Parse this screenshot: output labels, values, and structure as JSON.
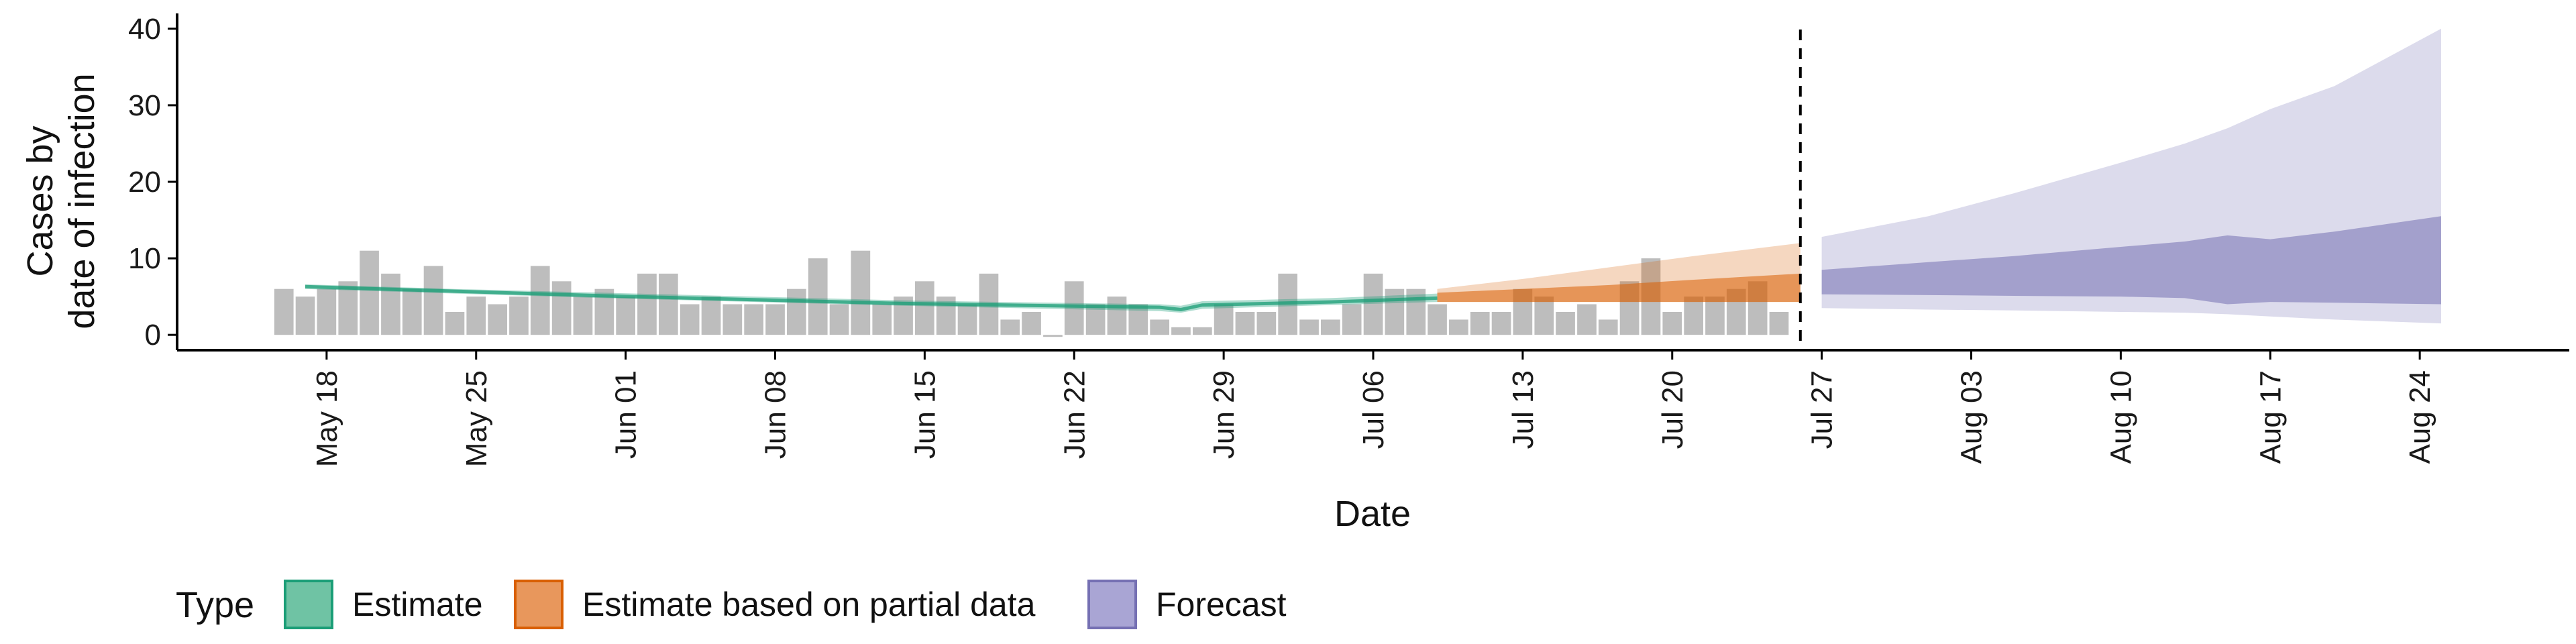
{
  "chart_data": {
    "type": "area",
    "xlabel": "Date",
    "ylabel_lines": [
      "Cases by",
      "date of infection"
    ],
    "yticks": [
      0,
      10,
      20,
      30,
      40
    ],
    "ylim": [
      -2,
      42
    ],
    "xlim": [
      "2020-05-11",
      "2020-08-31"
    ],
    "xticks": [
      "2020-05-18",
      "2020-05-25",
      "2020-06-01",
      "2020-06-08",
      "2020-06-15",
      "2020-06-22",
      "2020-06-29",
      "2020-07-06",
      "2020-07-13",
      "2020-07-20",
      "2020-07-27",
      "2020-08-03",
      "2020-08-10",
      "2020-08-17",
      "2020-08-24"
    ],
    "xtick_labels": [
      "May 18",
      "May 25",
      "Jun 01",
      "Jun 08",
      "Jun 15",
      "Jun 22",
      "Jun 29",
      "Jul 06",
      "Jul 13",
      "Jul 20",
      "Jul 27",
      "Aug 03",
      "Aug 10",
      "Aug 17",
      "Aug 24"
    ],
    "forecast_start": "2020-07-26",
    "observed_cases": {
      "start_date": "2020-05-16",
      "values": [
        6,
        5,
        6,
        7,
        11,
        8,
        6,
        9,
        3,
        5,
        4,
        5,
        9,
        7,
        5,
        6,
        5,
        8,
        8,
        4,
        5,
        4,
        4,
        4,
        6,
        10,
        4,
        11,
        4,
        5,
        7,
        5,
        4,
        8,
        2,
        3,
        0,
        7,
        4,
        5,
        4,
        2,
        1,
        1,
        4,
        3,
        3,
        8,
        2,
        2,
        4,
        8,
        6,
        6,
        4,
        2,
        3,
        3,
        6,
        5,
        3,
        4,
        2,
        7,
        10,
        3,
        5,
        5,
        6,
        7,
        3
      ]
    },
    "series": [
      {
        "name": "Estimate",
        "color": "#1b9e77",
        "x": [
          "2020-05-17",
          "2020-05-24",
          "2020-05-31",
          "2020-06-07",
          "2020-06-14",
          "2020-06-21",
          "2020-06-26",
          "2020-06-27",
          "2020-06-28",
          "2020-07-04",
          "2020-07-09"
        ],
        "median": [
          6.3,
          5.7,
          5.1,
          4.6,
          4.1,
          3.8,
          3.6,
          3.3,
          3.9,
          4.3,
          4.8
        ],
        "lower": [
          6.0,
          5.4,
          4.8,
          4.3,
          3.8,
          3.4,
          3.1,
          2.9,
          3.4,
          3.9,
          4.3
        ],
        "upper": [
          6.6,
          6.0,
          5.5,
          5.0,
          4.5,
          4.2,
          4.0,
          3.8,
          4.4,
          4.8,
          5.4
        ]
      },
      {
        "name": "Estimate based on partial data",
        "color": "#d95f02",
        "x": [
          "2020-07-09",
          "2020-07-13",
          "2020-07-17",
          "2020-07-21",
          "2020-07-26"
        ],
        "lower": [
          4.3,
          4.3,
          4.3,
          4.3,
          4.3
        ],
        "upper_inner": [
          5.5,
          6.0,
          6.5,
          7.2,
          8.0
        ],
        "upper_outer": [
          6.0,
          7.3,
          8.8,
          10.3,
          12.0
        ]
      },
      {
        "name": "Forecast",
        "color": "#7570b3",
        "x": [
          "2020-07-27",
          "2020-08-01",
          "2020-08-05",
          "2020-08-10",
          "2020-08-13",
          "2020-08-15",
          "2020-08-17",
          "2020-08-20",
          "2020-08-25"
        ],
        "outer_lower": [
          3.5,
          3.3,
          3.2,
          3.0,
          2.9,
          2.7,
          2.4,
          2.0,
          1.5
        ],
        "outer_upper": [
          12.8,
          15.5,
          18.5,
          22.5,
          25.0,
          27.0,
          29.5,
          32.5,
          40.0
        ],
        "inner_lower": [
          5.3,
          5.2,
          5.1,
          5.0,
          4.8,
          4.0,
          4.3,
          4.2,
          4.0
        ],
        "inner_upper": [
          8.5,
          9.5,
          10.3,
          11.5,
          12.2,
          13.0,
          12.5,
          13.5,
          15.5
        ]
      }
    ],
    "legend": {
      "title": "Type",
      "position": "bottom",
      "items": [
        {
          "label": "Estimate",
          "fill": "#6fc3a4",
          "border": "#1b9e77"
        },
        {
          "label": "Estimate based on partial data",
          "fill": "#e8975c",
          "border": "#d95f02"
        },
        {
          "label": "Forecast",
          "fill": "#a9a5d4",
          "border": "#7570b3"
        }
      ]
    },
    "colors": {
      "bars": "#bdbdbd",
      "axis": "#000000",
      "vline": "#000000"
    }
  }
}
